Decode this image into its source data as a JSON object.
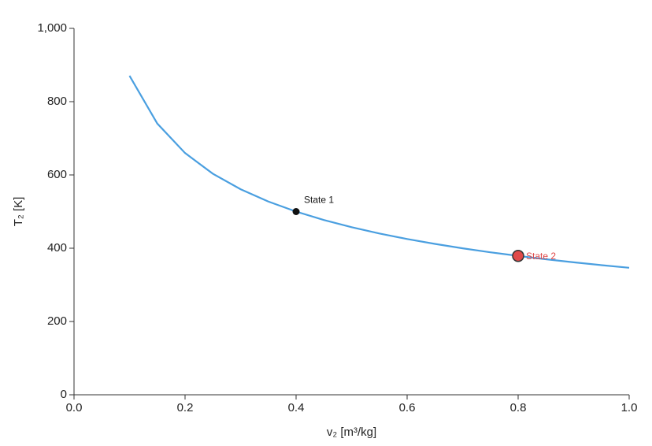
{
  "chart_data": {
    "type": "line",
    "x": [
      0.1,
      0.15,
      0.2,
      0.25,
      0.3,
      0.35,
      0.4,
      0.45,
      0.5,
      0.55,
      0.6,
      0.65,
      0.7,
      0.75,
      0.8,
      0.85,
      0.9,
      0.95,
      1.0
    ],
    "values": [
      870.6,
      740.2,
      659.8,
      603.4,
      561.0,
      527.4,
      500,
      477.0,
      457.3,
      440.2,
      425.2,
      411.8,
      399.7,
      388.9,
      379.0,
      369.9,
      361.5,
      353.8,
      346.6
    ],
    "color": "#4a9fe0",
    "xlabel": "v₂ [m³/kg]",
    "ylabel": "T₂ [K]",
    "xlim": [
      0,
      1
    ],
    "ylim": [
      0,
      1000
    ],
    "xticks": [
      {
        "value": 0,
        "label": "0.0"
      },
      0.2,
      0.4,
      0.6,
      0.8,
      {
        "value": 1,
        "label": "1.0"
      }
    ],
    "yticks": [
      0,
      200,
      400,
      600,
      800,
      {
        "value": 1000,
        "label": "1,000"
      }
    ],
    "grid": false,
    "points": [
      {
        "label": "State 1",
        "x": 0.4,
        "y": 500,
        "color": "#111111"
      },
      {
        "label": "State 2",
        "x": 0.8,
        "y": 379,
        "color": "#e04a4a"
      }
    ]
  }
}
